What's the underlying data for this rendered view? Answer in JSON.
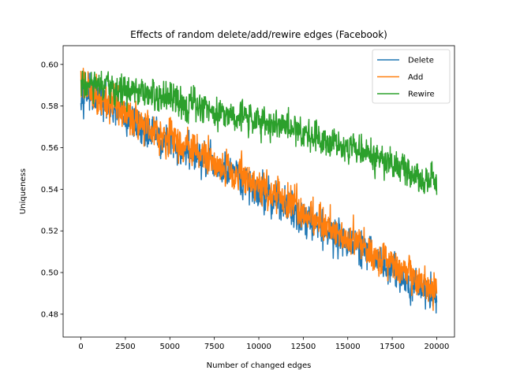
{
  "chart_data": {
    "type": "line",
    "title": "Effects of random delete/add/rewire edges (Facebook)",
    "xlabel": "Number of changed edges",
    "ylabel": "Uniqueness",
    "xlim": [
      -1000,
      21000
    ],
    "ylim": [
      0.469,
      0.609
    ],
    "xticks": [
      0,
      2500,
      5000,
      7500,
      10000,
      12500,
      15000,
      17500,
      20000
    ],
    "xtick_labels": [
      "0",
      "2500",
      "5000",
      "7500",
      "10000",
      "12500",
      "15000",
      "17500",
      "20000"
    ],
    "yticks": [
      0.48,
      0.5,
      0.52,
      0.54,
      0.56,
      0.58,
      0.6
    ],
    "ytick_labels": [
      "0.48",
      "0.50",
      "0.52",
      "0.54",
      "0.56",
      "0.58",
      "0.60"
    ],
    "grid": false,
    "legend_position": "top-right",
    "x": [
      0,
      500,
      1000,
      1500,
      2000,
      2500,
      3000,
      3500,
      4000,
      4500,
      5000,
      5500,
      6000,
      6500,
      7000,
      7500,
      8000,
      8500,
      9000,
      9500,
      10000,
      10500,
      11000,
      11500,
      12000,
      12500,
      13000,
      13500,
      14000,
      14500,
      15000,
      15500,
      16000,
      16500,
      17000,
      17500,
      18000,
      18500,
      19000,
      19500,
      20000
    ],
    "series": [
      {
        "name": "Delete",
        "color": "#1f77b4",
        "noise": 0.0085,
        "values": [
          0.589,
          0.586,
          0.583,
          0.58,
          0.577,
          0.574,
          0.572,
          0.569,
          0.567,
          0.564,
          0.562,
          0.56,
          0.558,
          0.556,
          0.553,
          0.551,
          0.549,
          0.547,
          0.544,
          0.542,
          0.54,
          0.537,
          0.535,
          0.532,
          0.53,
          0.527,
          0.525,
          0.522,
          0.52,
          0.517,
          0.515,
          0.512,
          0.51,
          0.507,
          0.504,
          0.501,
          0.499,
          0.496,
          0.494,
          0.491,
          0.49
        ]
      },
      {
        "name": "Add",
        "color": "#ff7f0e",
        "noise": 0.0085,
        "values": [
          0.591,
          0.588,
          0.585,
          0.582,
          0.579,
          0.576,
          0.574,
          0.572,
          0.569,
          0.567,
          0.565,
          0.563,
          0.56,
          0.558,
          0.556,
          0.553,
          0.551,
          0.549,
          0.547,
          0.544,
          0.542,
          0.539,
          0.537,
          0.534,
          0.532,
          0.529,
          0.527,
          0.524,
          0.522,
          0.519,
          0.517,
          0.514,
          0.512,
          0.509,
          0.506,
          0.503,
          0.5,
          0.498,
          0.495,
          0.492,
          0.49
        ]
      },
      {
        "name": "Rewire",
        "color": "#2ca02c",
        "noise": 0.0075,
        "values": [
          0.59,
          0.59,
          0.589,
          0.588,
          0.588,
          0.587,
          0.586,
          0.585,
          0.585,
          0.584,
          0.583,
          0.582,
          0.581,
          0.58,
          0.579,
          0.578,
          0.577,
          0.576,
          0.575,
          0.574,
          0.573,
          0.572,
          0.571,
          0.57,
          0.569,
          0.568,
          0.566,
          0.565,
          0.564,
          0.562,
          0.561,
          0.559,
          0.557,
          0.556,
          0.554,
          0.552,
          0.55,
          0.548,
          0.546,
          0.544,
          0.542
        ]
      }
    ]
  }
}
